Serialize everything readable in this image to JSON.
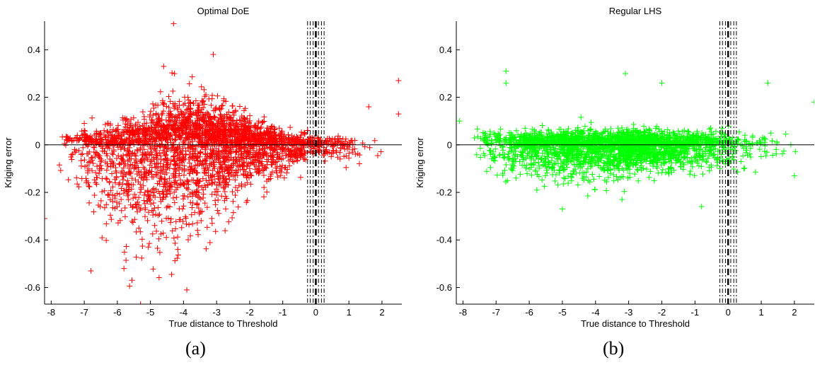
{
  "figure": {
    "captions": [
      "(a)",
      "(b)"
    ]
  },
  "chart_data": [
    {
      "type": "scatter",
      "title": "Optimal DoE",
      "xlabel": "True distance to Threshold",
      "ylabel": "Kriging error",
      "xlim": [
        -8.2,
        2.6
      ],
      "ylim": [
        -0.67,
        0.52
      ],
      "xticks": [
        -8,
        -7,
        -6,
        -5,
        -4,
        -3,
        -2,
        -1,
        0,
        1,
        2
      ],
      "yticks": [
        -0.6,
        -0.4,
        -0.2,
        0,
        0.2,
        0.4
      ],
      "ytick_labels": [
        "-0.6",
        "-0.4",
        "-0.2",
        "0",
        "0.2",
        "0.4"
      ],
      "marker": "+",
      "color": "#ff0000",
      "grid": false,
      "reference_hline": 0,
      "threshold_lines": {
        "center": 0,
        "dashdot_offsets": [
          -0.25,
          -0.17,
          -0.08,
          0.08,
          0.17,
          0.25
        ]
      },
      "n_points": 3000,
      "bulk_envelope": [
        [
          -7.5,
          0.02,
          0.01,
          0.08
        ],
        [
          -6.5,
          0.0,
          0.03,
          0.14
        ],
        [
          -5.5,
          0.0,
          0.05,
          0.18
        ],
        [
          -4.5,
          0.02,
          0.08,
          0.2
        ],
        [
          -3.5,
          0.03,
          0.08,
          0.17
        ],
        [
          -2.5,
          0.02,
          0.06,
          0.12
        ],
        [
          -1.5,
          0.01,
          0.04,
          0.08
        ],
        [
          -0.5,
          0.0,
          0.02,
          0.04
        ],
        [
          0.5,
          0.0,
          0.015,
          0.03
        ],
        [
          1.5,
          0.0,
          0.025,
          0.05
        ],
        [
          2.4,
          0.02,
          0.03,
          0.06
        ]
      ],
      "outliers": [
        [
          -4.3,
          0.51
        ],
        [
          -8.2,
          -0.31
        ],
        [
          2.5,
          0.27
        ],
        [
          2.5,
          0.13
        ],
        [
          -3.1,
          0.38
        ],
        [
          -5.3,
          -0.67
        ],
        [
          -3.9,
          -0.61
        ],
        [
          -6.8,
          -0.53
        ],
        [
          -5.8,
          -0.52
        ],
        [
          -4.6,
          0.33
        ],
        [
          1.6,
          0.16
        ],
        [
          -7.0,
          0.09
        ]
      ]
    },
    {
      "type": "scatter",
      "title": "Regular LHS",
      "xlabel": "True distance to Threshold",
      "ylabel": "Kriging error",
      "xlim": [
        -8.2,
        2.6
      ],
      "ylim": [
        -0.67,
        0.52
      ],
      "xticks": [
        -8,
        -7,
        -6,
        -5,
        -4,
        -3,
        -2,
        -1,
        0,
        1,
        2
      ],
      "yticks": [
        -0.6,
        -0.4,
        -0.2,
        0,
        0.2,
        0.4
      ],
      "ytick_labels": [
        "-0.6",
        "-0.4",
        "-0.2",
        "0",
        "0.2",
        "0.4"
      ],
      "marker": "+",
      "color": "#00ff00",
      "grid": false,
      "reference_hline": 0,
      "threshold_lines": {
        "center": 0,
        "dashdot_offsets": [
          -0.25,
          -0.17,
          -0.08,
          0.08,
          0.17,
          0.25
        ]
      },
      "n_points": 2600,
      "bulk_envelope": [
        [
          -7.5,
          0.02,
          0.02,
          0.05
        ],
        [
          -6.5,
          0.0,
          0.025,
          0.06
        ],
        [
          -5.5,
          0.0,
          0.028,
          0.065
        ],
        [
          -4.5,
          0.0,
          0.03,
          0.065
        ],
        [
          -3.5,
          0.0,
          0.03,
          0.065
        ],
        [
          -2.5,
          0.0,
          0.03,
          0.06
        ],
        [
          -1.5,
          0.0,
          0.028,
          0.055
        ],
        [
          -0.5,
          0.0,
          0.025,
          0.05
        ],
        [
          0.5,
          0.0,
          0.022,
          0.045
        ],
        [
          1.5,
          0.0,
          0.02,
          0.04
        ],
        [
          2.4,
          0.0,
          0.02,
          0.04
        ]
      ],
      "outliers": [
        [
          -6.7,
          0.31
        ],
        [
          -3.1,
          0.3
        ],
        [
          -8.1,
          0.1
        ],
        [
          -5.0,
          -0.27
        ],
        [
          -3.2,
          -0.23
        ],
        [
          -0.8,
          -0.26
        ],
        [
          1.2,
          0.26
        ],
        [
          2.0,
          -0.13
        ],
        [
          2.6,
          0.18
        ],
        [
          -6.7,
          0.26
        ],
        [
          -6.8,
          -0.12
        ],
        [
          -2.0,
          0.26
        ]
      ]
    }
  ]
}
